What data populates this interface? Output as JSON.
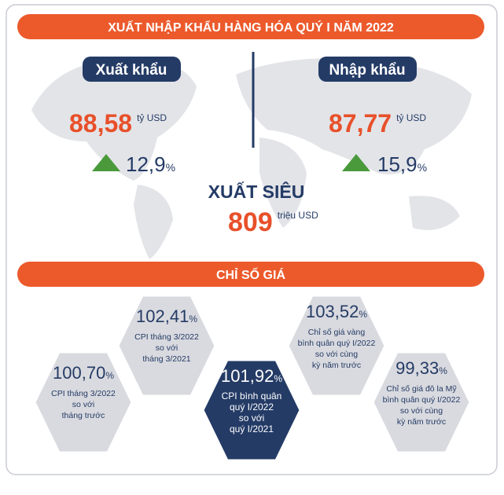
{
  "header": {
    "title": "XUẤT NHẬP KHẨU HÀNG HÓA QUÝ I NĂM 2022"
  },
  "export": {
    "label": "Xuất khẩu",
    "value": "88,58",
    "unit": "tỷ USD",
    "growth": "12,9",
    "growth_unit": "%"
  },
  "import": {
    "label": "Nhập khẩu",
    "value": "87,77",
    "unit": "tỷ USD",
    "growth": "15,9",
    "growth_unit": "%"
  },
  "surplus": {
    "label": "XUẤT SIÊU",
    "value": "809",
    "unit": "triệu USD"
  },
  "price_index": {
    "title": "CHỈ SỐ GIÁ",
    "items": [
      {
        "value": "100,70",
        "unit": "%",
        "lines": [
          "CPI tháng 3/2022",
          "so với",
          "tháng trước"
        ]
      },
      {
        "value": "102,41",
        "unit": "%",
        "lines": [
          "CPI tháng 3/2022",
          "so với",
          "tháng 3/2021"
        ]
      },
      {
        "value": "101,92",
        "unit": "%",
        "lines": [
          "CPI bình quân",
          "quý I/2022",
          "so với",
          "quý I/2021"
        ]
      },
      {
        "value": "103,52",
        "unit": "%",
        "lines": [
          "Chỉ số giá vàng",
          "bình quân quý I/2022",
          "so với cùng",
          "kỳ năm trước"
        ]
      },
      {
        "value": "99,33",
        "unit": "%",
        "lines": [
          "Chỉ số giá đô la Mỹ",
          "bình quân quý I/2022",
          "so với cùng",
          "kỳ năm trước"
        ]
      }
    ]
  }
}
